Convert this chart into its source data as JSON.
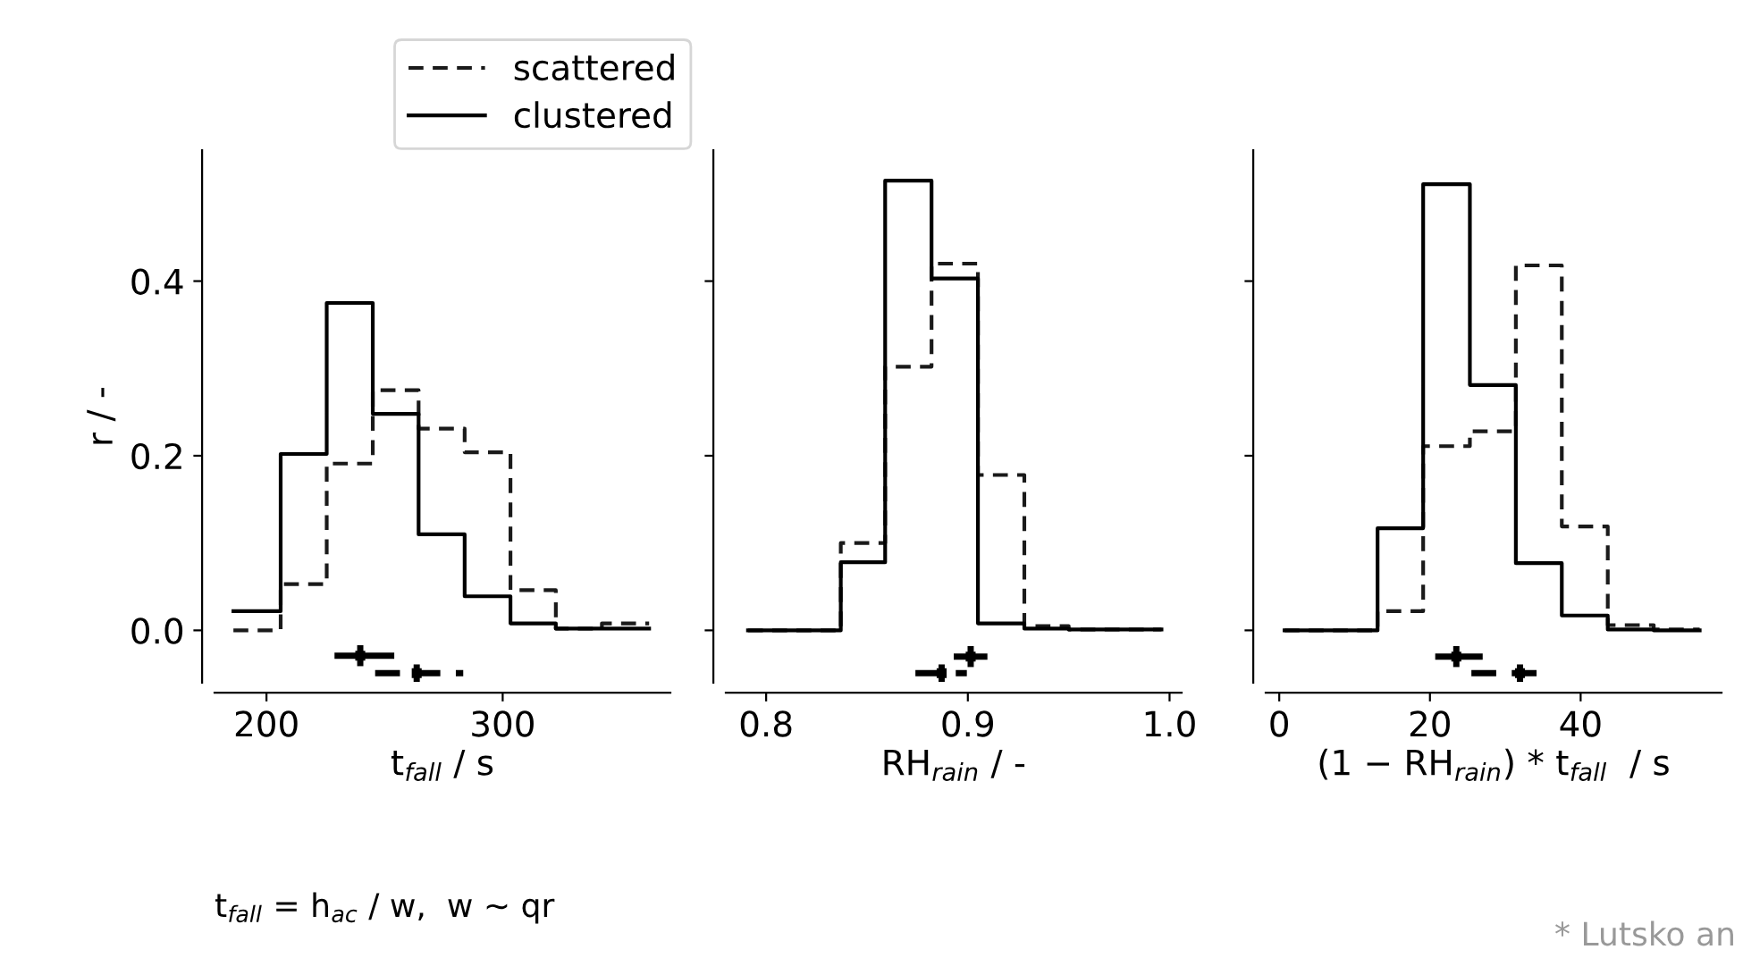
{
  "chart_data": [
    {
      "type": "histogram",
      "xlabel": "t$_{fall}$ / s",
      "ylabel": "r / -",
      "legend": "top",
      "grid": false,
      "bins": [
        186,
        206,
        225.5,
        245,
        264.4,
        283.9,
        303.3,
        322.5,
        342,
        362
      ],
      "xlim": [
        178,
        371
      ],
      "xticks": [
        200,
        300
      ],
      "ylim": [
        -0.06,
        0.55
      ],
      "yticks": [
        {
          "value": 0,
          "label": "0.0"
        },
        {
          "value": 0.2,
          "label": "0.2"
        },
        {
          "value": 0.4,
          "label": "0.4"
        }
      ],
      "series": [
        {
          "name": "scattered",
          "color": "#1a1a1a",
          "line_style": "dashed",
          "values": [
            0,
            0.053,
            0.191,
            0.275,
            0.231,
            0.204,
            0.046,
            0.002,
            0.008
          ]
        },
        {
          "name": "clustered",
          "color": "#000000",
          "line_style": "solid",
          "values": [
            0.022,
            0.202,
            0.375,
            0.248,
            0.11,
            0.039,
            0.008,
            0.002,
            0.002
          ]
        },
        {
          "type": "scatter",
          "color": "#000000",
          "line_style": "solid",
          "marker": "square",
          "x": [
            239.7
          ],
          "values": [
            -0.029
          ],
          "xerrors": [
            [
              228.8,
              254.1
            ]
          ],
          "errors": [
            0.012
          ]
        },
        {
          "type": "scatter",
          "color": "#000000",
          "line_style": "dashed",
          "marker": "square",
          "x": [
            263.6
          ],
          "values": [
            -0.049
          ],
          "xerrors": [
            [
              246,
              283.3
            ]
          ],
          "errors": [
            0.01
          ]
        }
      ],
      "annotations": [
        "t$_{fall}$ = h$_{ac}$ / w,  w ~ qr",
        "* Lutsko an"
      ]
    },
    {
      "type": "histogram",
      "xlabel": "RH$_{rain}$ / -",
      "tick_labels": "x",
      "grid": false,
      "bins": [
        0.791,
        0.814,
        0.837,
        0.859,
        0.882,
        0.905,
        0.928,
        0.95,
        0.973,
        0.996
      ],
      "xlim": [
        0.78,
        1.006
      ],
      "xticks": [
        0.8,
        0.9,
        {
          "value": 1.0,
          "label": "1.0"
        }
      ],
      "ylim": [
        -0.06,
        0.55
      ],
      "yticks": [
        0,
        0.2,
        0.4
      ],
      "series": [
        {
          "color": "#1a1a1a",
          "line_style": "dashed",
          "values": [
            0,
            0,
            0.1,
            0.302,
            0.42,
            0.178,
            0.005,
            0.001,
            0.001
          ]
        },
        {
          "color": "#000000",
          "line_style": "solid",
          "values": [
            0,
            0,
            0.078,
            0.515,
            0.403,
            0.008,
            0.002,
            0.001,
            0.001
          ]
        },
        {
          "type": "scatter",
          "color": "#000000",
          "line_style": "solid",
          "marker": "square",
          "x": [
            0.9014
          ],
          "values": [
            -0.03
          ],
          "xerrors": [
            [
              0.893,
              0.9097
            ]
          ],
          "errors": [
            0.012
          ]
        },
        {
          "type": "scatter",
          "color": "#000000",
          "line_style": "dashed",
          "marker": "square",
          "x": [
            0.887
          ],
          "values": [
            -0.049
          ],
          "xerrors": [
            [
              0.874,
              0.8995
            ]
          ],
          "errors": [
            0.01
          ]
        }
      ]
    },
    {
      "type": "histogram",
      "xlabel": "(1 − RH$_{rain}$) * t$_{fall}$  / s",
      "tick_labels": "x",
      "grid": false,
      "bins": [
        0.7,
        6.9,
        13.05,
        19.1,
        25.3,
        31.4,
        37.5,
        43.6,
        49.7,
        55.8
      ],
      "xlim": [
        -1.8,
        58.7
      ],
      "xticks": [
        0,
        20,
        40
      ],
      "ylim": [
        -0.06,
        0.55
      ],
      "yticks": [
        0,
        0.2,
        0.4
      ],
      "series": [
        {
          "color": "#1a1a1a",
          "line_style": "dashed",
          "values": [
            0,
            0,
            0.022,
            0.211,
            0.228,
            0.418,
            0.119,
            0.006,
            0.001
          ]
        },
        {
          "color": "#000000",
          "line_style": "solid",
          "values": [
            0,
            0,
            0.117,
            0.511,
            0.281,
            0.077,
            0.017,
            0.001,
            0
          ]
        },
        {
          "type": "scatter",
          "color": "#000000",
          "line_style": "solid",
          "marker": "square",
          "x": [
            23.5
          ],
          "values": [
            -0.03
          ],
          "xerrors": [
            [
              20.7,
              27.0
            ]
          ],
          "errors": [
            0.012
          ]
        },
        {
          "type": "scatter",
          "color": "#000000",
          "line_style": "dashed",
          "marker": "square",
          "x": [
            31.95
          ],
          "values": [
            -0.049
          ],
          "xerrors": [
            [
              25.5,
              34.2
            ]
          ],
          "errors": [
            0.01
          ]
        }
      ]
    }
  ]
}
